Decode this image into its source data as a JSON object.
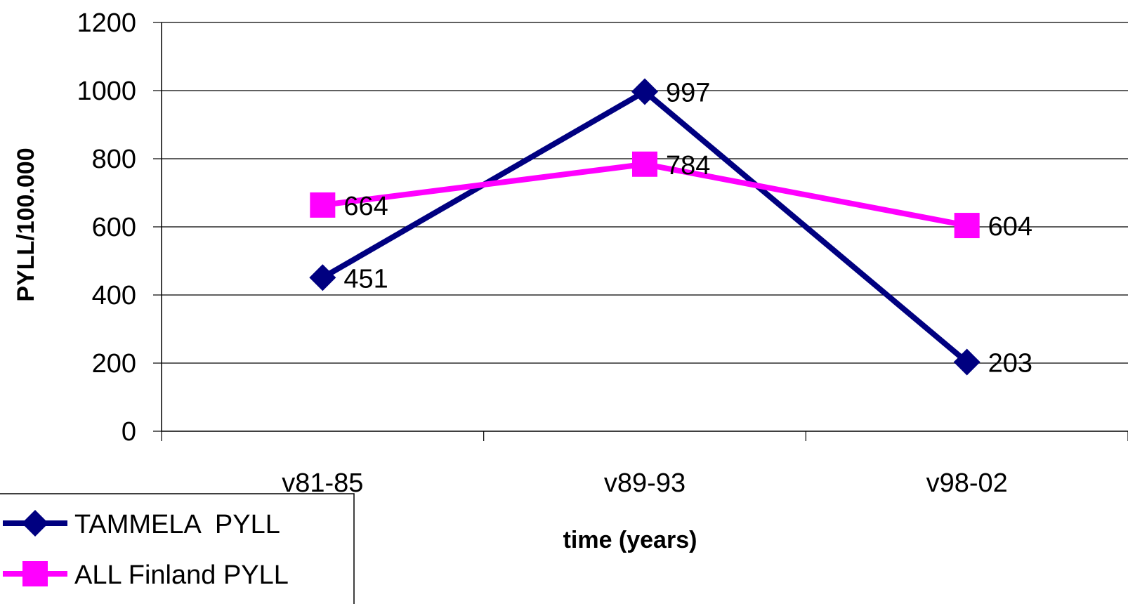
{
  "chart_data": {
    "type": "line",
    "categories": [
      "v81-85",
      "v89-93",
      "v98-02"
    ],
    "series": [
      {
        "name": "TAMMELA  PYLL",
        "values": [
          451,
          997,
          203
        ],
        "color": "#000080",
        "marker": "diamond"
      },
      {
        "name": "ALL Finland PYLL",
        "values": [
          664,
          784,
          604
        ],
        "color": "#ff00ff",
        "marker": "square"
      }
    ],
    "title": "",
    "xlabel": "time (years)",
    "ylabel": "PYLL/100.000",
    "ylim": [
      0,
      1200
    ],
    "yticks": [
      0,
      200,
      400,
      600,
      800,
      1000,
      1200
    ],
    "grid": true,
    "legend_position": "bottom-left"
  }
}
